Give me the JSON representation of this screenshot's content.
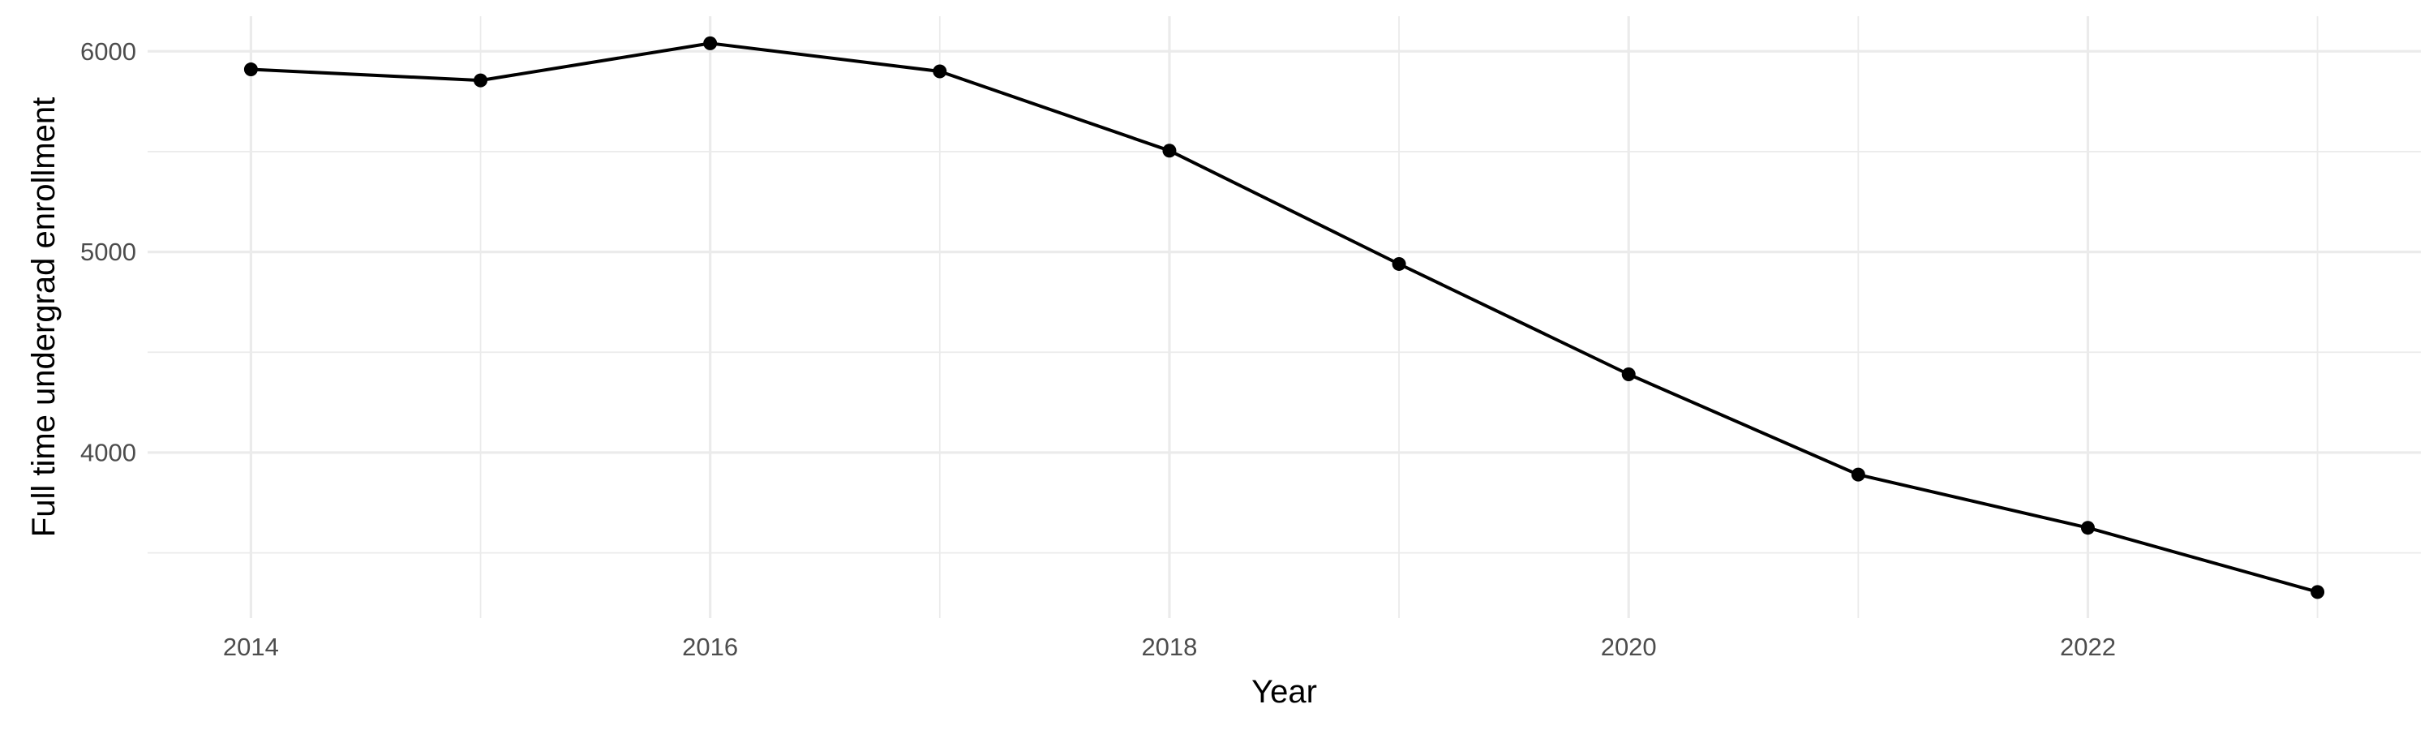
{
  "chart_data": {
    "type": "line",
    "title": "",
    "xlabel": "Year",
    "ylabel": "Full time undergrad enrollment",
    "x": [
      2014,
      2015,
      2016,
      2017,
      2018,
      2019,
      2020,
      2021,
      2022,
      2023
    ],
    "series": [
      {
        "values": [
          5910,
          5855,
          6040,
          5900,
          5505,
          4940,
          4390,
          3890,
          3625,
          3305
        ]
      }
    ],
    "xlim": [
      2013.55,
      2023.45
    ],
    "ylim": [
      3175,
      6175
    ],
    "x_ticks": [
      2014,
      2016,
      2018,
      2020,
      2022
    ],
    "x_tick_labels": [
      "2014",
      "2016",
      "2018",
      "2020",
      "2022"
    ],
    "x_minor_ticks": [
      2015,
      2017,
      2019,
      2021,
      2023
    ],
    "y_ticks": [
      4000,
      5000,
      6000
    ],
    "y_tick_labels": [
      "4000",
      "5000",
      "6000"
    ],
    "y_minor_ticks": [
      3500,
      4500,
      5500
    ],
    "grid": true,
    "legend": "none",
    "colors": {
      "background": "#ffffff",
      "grid": "#ebebeb",
      "line": "#000000",
      "points": "#000000",
      "tick_text": "#4d4d4d",
      "axis_title": "#000000"
    }
  }
}
